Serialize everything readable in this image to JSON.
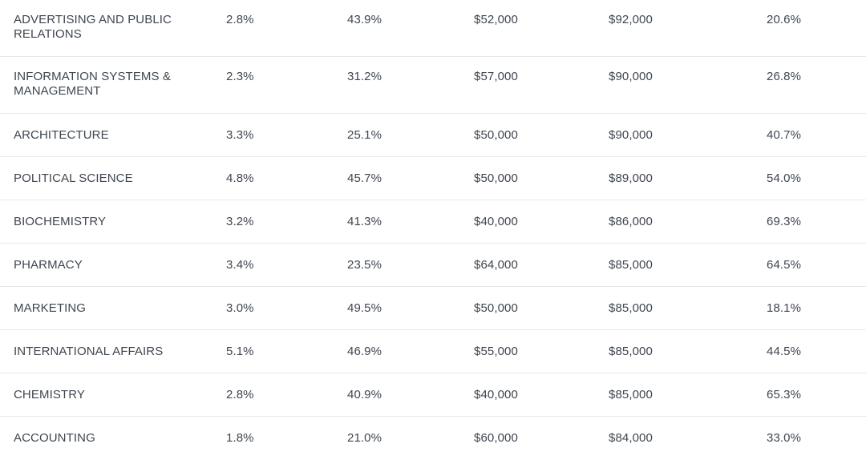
{
  "rows": [
    {
      "major": "ADVERTISING AND PUBLIC RELATIONS",
      "col1": "2.8%",
      "col2": "43.9%",
      "col3": "$52,000",
      "col4": "$92,000",
      "col5": "20.6%"
    },
    {
      "major": "INFORMATION SYSTEMS & MANAGEMENT",
      "col1": "2.3%",
      "col2": "31.2%",
      "col3": "$57,000",
      "col4": "$90,000",
      "col5": "26.8%"
    },
    {
      "major": "ARCHITECTURE",
      "col1": "3.3%",
      "col2": "25.1%",
      "col3": "$50,000",
      "col4": "$90,000",
      "col5": "40.7%"
    },
    {
      "major": "POLITICAL SCIENCE",
      "col1": "4.8%",
      "col2": "45.7%",
      "col3": "$50,000",
      "col4": "$89,000",
      "col5": "54.0%"
    },
    {
      "major": "BIOCHEMISTRY",
      "col1": "3.2%",
      "col2": "41.3%",
      "col3": "$40,000",
      "col4": "$86,000",
      "col5": "69.3%"
    },
    {
      "major": "PHARMACY",
      "col1": "3.4%",
      "col2": "23.5%",
      "col3": "$64,000",
      "col4": "$85,000",
      "col5": "64.5%"
    },
    {
      "major": "MARKETING",
      "col1": "3.0%",
      "col2": "49.5%",
      "col3": "$50,000",
      "col4": "$85,000",
      "col5": "18.1%"
    },
    {
      "major": "INTERNATIONAL AFFAIRS",
      "col1": "5.1%",
      "col2": "46.9%",
      "col3": "$55,000",
      "col4": "$85,000",
      "col5": "44.5%"
    },
    {
      "major": "CHEMISTRY",
      "col1": "2.8%",
      "col2": "40.9%",
      "col3": "$40,000",
      "col4": "$85,000",
      "col5": "65.3%"
    },
    {
      "major": "ACCOUNTING",
      "col1": "1.8%",
      "col2": "21.0%",
      "col3": "$60,000",
      "col4": "$84,000",
      "col5": "33.0%"
    }
  ]
}
